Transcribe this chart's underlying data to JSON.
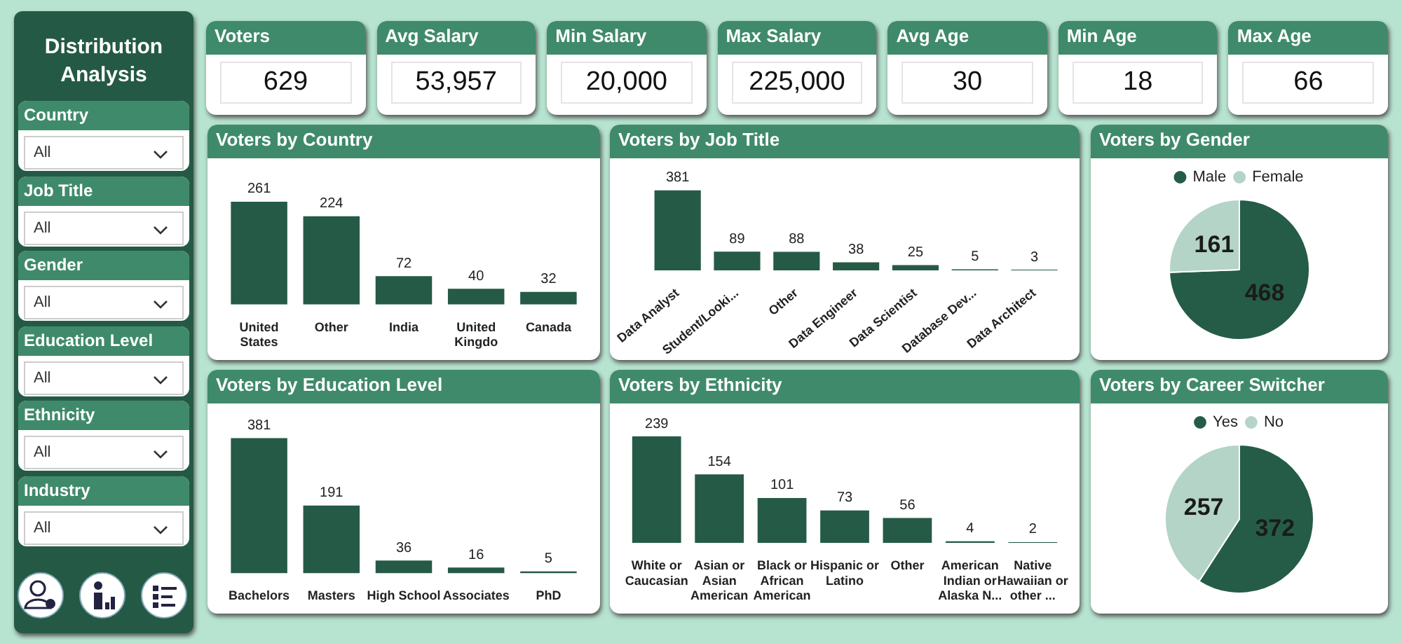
{
  "chart_data": [
    {
      "type": "other",
      "title": "Distribution Analysis",
      "categories": [
        "Country",
        "Job Title",
        "Gender",
        "Education Level",
        "Ethnicity",
        "Industry"
      ],
      "annotations": [
        "All",
        "All",
        "All",
        "All",
        "All",
        "All"
      ]
    },
    {
      "type": "other",
      "categories": [
        "Voters",
        "Avg Salary",
        "Min Salary",
        "Max Salary",
        "Avg Age",
        "Min Age",
        "Max Age"
      ],
      "values": [
        629,
        53957,
        20000,
        225000,
        30,
        18,
        66
      ],
      "value_labels": [
        "629",
        "53,957",
        "20,000",
        "225,000",
        "30",
        "18",
        "66"
      ]
    },
    {
      "type": "bar",
      "title": "Voters by Country",
      "categories": [
        "United States",
        "Other",
        "India",
        "United Kingdo",
        "Canada"
      ],
      "values": [
        261,
        224,
        72,
        40,
        32
      ],
      "color": "#255a46",
      "data_labels": true,
      "grid": false,
      "tick_labels": "x"
    },
    {
      "type": "bar",
      "title": "Voters by Job Title",
      "categories": [
        "Data Analyst",
        "Student/Looki...",
        "Other",
        "Data Engineer",
        "Data Scientist",
        "Database Dev...",
        "Data Architect"
      ],
      "values": [
        381,
        89,
        88,
        38,
        25,
        5,
        3
      ],
      "color": "#255a46",
      "data_labels": true,
      "grid": false,
      "tick_labels": "x"
    },
    {
      "type": "pie",
      "title": "Voters by Gender",
      "categories": [
        "Male",
        "Female"
      ],
      "values": [
        468,
        161
      ],
      "colors": [
        "#255c47",
        "#b3d4c7"
      ],
      "legend": "top",
      "data_labels": true
    },
    {
      "type": "bar",
      "title": "Voters by Education Level",
      "categories": [
        "Bachelors",
        "Masters",
        "High School",
        "Associates",
        "PhD"
      ],
      "values": [
        381,
        191,
        36,
        16,
        5
      ],
      "color": "#255a46",
      "data_labels": true,
      "grid": false,
      "tick_labels": "x"
    },
    {
      "type": "bar",
      "title": "Voters by Ethnicity",
      "categories": [
        "White or Caucasian",
        "Asian or Asian American",
        "Black or African American",
        "Hispanic or Latino",
        "Other",
        "American Indian or Alaska N...",
        "Native Hawaiian or other ..."
      ],
      "values": [
        239,
        154,
        101,
        73,
        56,
        4,
        2
      ],
      "color": "#255a46",
      "data_labels": true,
      "grid": false,
      "tick_labels": "x"
    },
    {
      "type": "pie",
      "title": "Voters by Career Switcher",
      "categories": [
        "Yes",
        "No"
      ],
      "values": [
        372,
        257
      ],
      "colors": [
        "#255c47",
        "#b3d4c7"
      ],
      "legend": "top",
      "data_labels": true
    }
  ]
}
